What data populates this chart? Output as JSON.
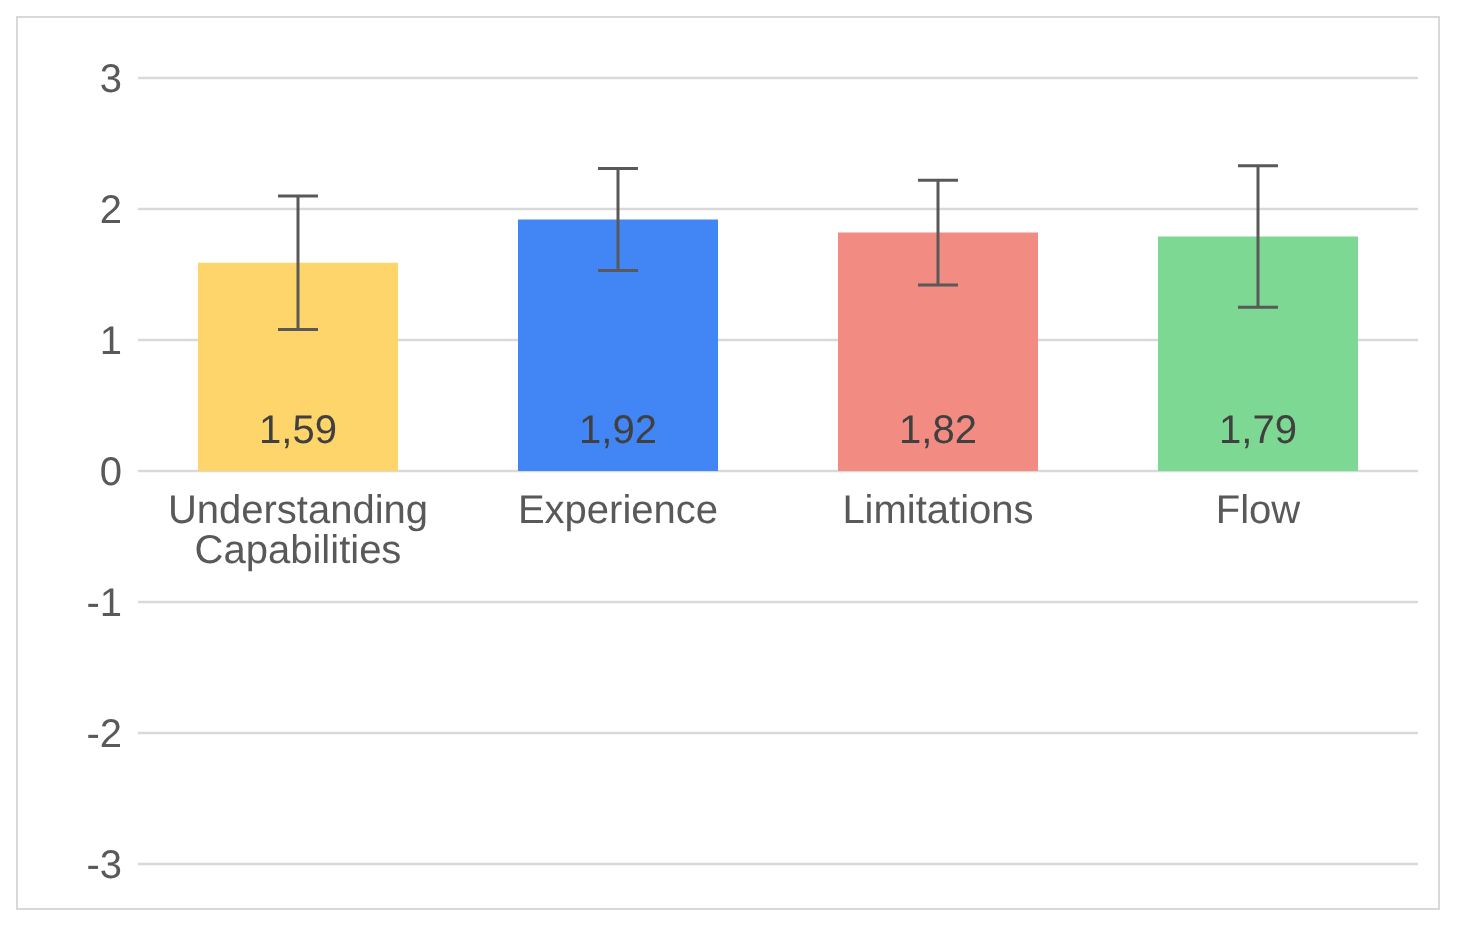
{
  "chart_data": {
    "type": "bar",
    "categories": [
      "Understanding Capabilities",
      "Experience",
      "Limitations",
      "Flow"
    ],
    "values": [
      1.59,
      1.92,
      1.82,
      1.79
    ],
    "colors": [
      "#fed56b",
      "#4286f5",
      "#f28b82",
      "#7dd893"
    ],
    "errors": [
      0.51,
      0.39,
      0.4,
      0.54
    ],
    "value_labels": [
      "1,59",
      "1,92",
      "1,82",
      "1,79"
    ],
    "ylim": [
      -3,
      3
    ],
    "yticks": [
      -3,
      -2,
      -1,
      0,
      1,
      2,
      3
    ],
    "grid": "y"
  }
}
